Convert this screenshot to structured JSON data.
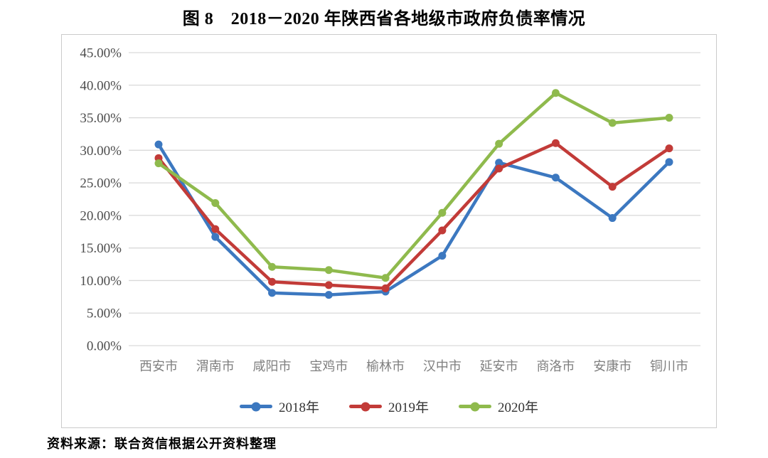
{
  "page": {
    "title": "图 8　2018－2020 年陕西省各地级市政府负债率情况",
    "source": "资料来源：联合资信根据公开资料整理"
  },
  "colors": {
    "series_2018": "#3c78c0",
    "series_2019": "#c23b38",
    "series_2020": "#8fba4d",
    "gridline": "#d9d9d9",
    "frame_border": "#cbcbcb",
    "axis_y_text": "#4d4d4d",
    "axis_x_text": "#7f7f7f",
    "legend_text": "#333333"
  },
  "chart_data": {
    "type": "line",
    "title": "图 8　2018－2020 年陕西省各地级市政府负债率情况",
    "categories": [
      "西安市",
      "渭南市",
      "咸阳市",
      "宝鸡市",
      "榆林市",
      "汉中市",
      "延安市",
      "商洛市",
      "安康市",
      "铜川市"
    ],
    "series": [
      {
        "name": "2018年",
        "color": "#3c78c0",
        "values": [
          30.9,
          16.7,
          8.1,
          7.8,
          8.3,
          13.8,
          28.1,
          25.8,
          19.6,
          28.2
        ]
      },
      {
        "name": "2019年",
        "color": "#c23b38",
        "values": [
          28.8,
          17.9,
          9.8,
          9.3,
          8.8,
          17.7,
          27.2,
          31.1,
          24.4,
          30.3
        ]
      },
      {
        "name": "2020年",
        "color": "#8fba4d",
        "values": [
          28.0,
          21.9,
          12.1,
          11.6,
          10.4,
          20.4,
          31.0,
          38.8,
          34.2,
          35.0
        ]
      }
    ],
    "xlabel": "",
    "ylabel": "",
    "ylim": [
      0,
      45
    ],
    "ytick_step": 5,
    "ytick_labels": [
      "0.00%",
      "5.00%",
      "10.00%",
      "15.00%",
      "20.00%",
      "25.00%",
      "30.00%",
      "35.00%",
      "40.00%",
      "45.00%"
    ],
    "tick_format": {
      "decimals": 2,
      "suffix": "%"
    },
    "grid": true,
    "legend_position": "bottom-center",
    "unit": "percent"
  }
}
